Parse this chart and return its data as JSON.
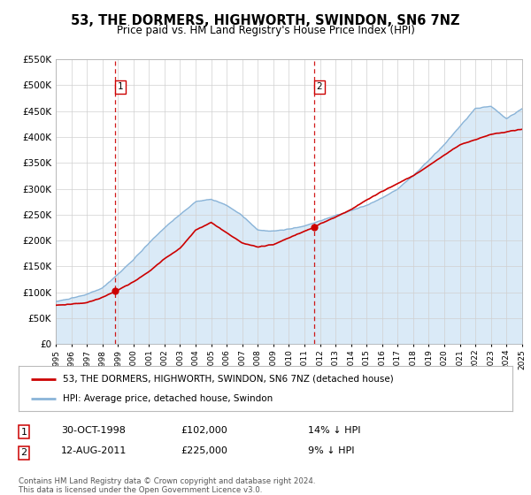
{
  "title": "53, THE DORMERS, HIGHWORTH, SWINDON, SN6 7NZ",
  "subtitle": "Price paid vs. HM Land Registry's House Price Index (HPI)",
  "legend_line1": "53, THE DORMERS, HIGHWORTH, SWINDON, SN6 7NZ (detached house)",
  "legend_line2": "HPI: Average price, detached house, Swindon",
  "marker1_date": "30-OCT-1998",
  "marker1_price": 102000,
  "marker1_label": "14% ↓ HPI",
  "marker2_date": "12-AUG-2011",
  "marker2_price": 225000,
  "marker2_label": "9% ↓ HPI",
  "marker1_x": 1998.83,
  "marker2_x": 2011.62,
  "footnote1": "Contains HM Land Registry data © Crown copyright and database right 2024.",
  "footnote2": "This data is licensed under the Open Government Licence v3.0.",
  "price_color": "#cc0000",
  "hpi_color": "#8ab4d8",
  "hpi_fill_color": "#daeaf7",
  "vline_color": "#cc0000",
  "plot_bg_color": "#ffffff",
  "ylim": [
    0,
    550000
  ],
  "xlim_start": 1995,
  "xlim_end": 2025
}
